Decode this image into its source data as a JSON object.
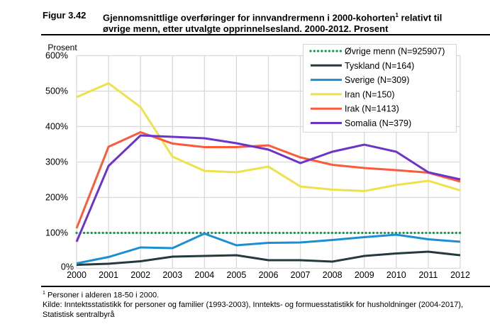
{
  "figure": {
    "number": "Figur 3.42",
    "title_main": "Gjennomsnittlige overføringer for innvandrermenn i 2000-kohorten",
    "title_sup": "1",
    "title_rest": " relativt til øvrige menn, etter utvalgte opprinnelsesland. 2000-2012. Prosent"
  },
  "footnotes": {
    "note_marker": "1",
    "note_text": " Personer i alderen 18-50 i 2000.",
    "source": "Kilde: Inntektsstatistikk for personer og familier (1993-2003), Inntekts- og formuesstatistikk for husholdninger (2004-2017), Statistisk sentralbyrå"
  },
  "chart_data": {
    "type": "line",
    "title": "Gjennomsnittlige overføringer for innvandrermenn i 2000-kohorten relativt til øvrige menn, etter utvalgte opprinnelsesland. 2000-2012. Prosent",
    "xlabel": "",
    "ylabel": "Prosent",
    "x": [
      2000,
      2001,
      2002,
      2003,
      2004,
      2005,
      2006,
      2007,
      2008,
      2009,
      2010,
      2011,
      2012
    ],
    "x_tick_labels": [
      "2000",
      "2001",
      "2002",
      "2003",
      "2004",
      "2005",
      "2006",
      "2007",
      "2008",
      "2009",
      "2010",
      "2011",
      "2012"
    ],
    "ylim": [
      0,
      600
    ],
    "y_ticks": [
      0,
      100,
      200,
      300,
      400,
      500,
      600
    ],
    "y_tick_labels": [
      "0%",
      "100%",
      "200%",
      "300%",
      "400%",
      "500%",
      "600%"
    ],
    "grid": true,
    "legend_position": "top-right",
    "series": [
      {
        "name": "Øvrige menn (N=925907)",
        "color": "#0e9a4c",
        "style": "dotted",
        "values": [
          100,
          100,
          100,
          100,
          100,
          100,
          100,
          100,
          100,
          100,
          100,
          100,
          100
        ]
      },
      {
        "name": "Tyskland (N=164)",
        "color": "#233a3e",
        "style": "solid",
        "values": [
          10,
          13,
          20,
          33,
          35,
          37,
          23,
          23,
          19,
          35,
          42,
          47,
          37
        ]
      },
      {
        "name": "Sverige (N=309)",
        "color": "#1b8fd2",
        "style": "solid",
        "values": [
          14,
          32,
          59,
          57,
          98,
          65,
          72,
          73,
          80,
          88,
          95,
          82,
          75
        ]
      },
      {
        "name": "Iran (N=150)",
        "color": "#efe14b",
        "style": "solid",
        "values": [
          483,
          522,
          455,
          315,
          275,
          271,
          287,
          231,
          222,
          218,
          235,
          247,
          220
        ]
      },
      {
        "name": "Irak (N=1413)",
        "color": "#fb5a3b",
        "style": "solid",
        "values": [
          113,
          343,
          384,
          352,
          342,
          342,
          347,
          313,
          292,
          283,
          277,
          270,
          245
        ]
      },
      {
        "name": "Somalia (N=379)",
        "color": "#6b35c9",
        "style": "solid",
        "values": [
          75,
          289,
          375,
          371,
          367,
          353,
          335,
          297,
          329,
          349,
          329,
          271,
          251
        ]
      }
    ]
  }
}
